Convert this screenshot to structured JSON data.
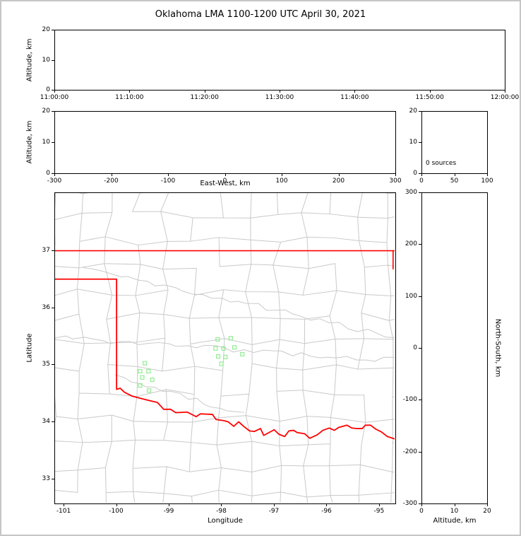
{
  "title": "Oklahoma LMA 1100-1200 UTC April 30, 2021",
  "colors": {
    "state_border": "#ff0000",
    "county_lines": "#c9c9c9",
    "source_marker": "#90ee90",
    "axis_frame": "#000000",
    "page_border": "#c6c6c6",
    "background": "#ffffff"
  },
  "panels": {
    "time_height": {
      "ylabel": "Altitude, km",
      "ytick_labels": [
        "0",
        "10",
        "20"
      ],
      "xtick_labels": [
        "11:00:00",
        "11:10:00",
        "11:20:00",
        "11:30:00",
        "11:40:00",
        "11:50:00",
        "12:00:00"
      ],
      "ylim": [
        0,
        20
      ]
    },
    "ew_height": {
      "xlabel": "East-West, km",
      "ylabel": "Altitude, km",
      "xtick_labels": [
        "-300",
        "-200",
        "-100",
        "0",
        "100",
        "200",
        "300"
      ],
      "ytick_labels": [
        "0",
        "10",
        "20"
      ],
      "xlim": [
        -300,
        300
      ],
      "ylim": [
        0,
        20
      ]
    },
    "alt_histogram": {
      "annotation": "0 sources",
      "xtick_labels": [
        "0",
        "50",
        "100"
      ],
      "ytick_labels": [
        "0",
        "10",
        "20"
      ],
      "xlim": [
        0,
        100
      ],
      "ylim": [
        0,
        20
      ]
    },
    "map": {
      "xlabel": "Longitude",
      "ylabel": "Latitude",
      "xtick_labels": [
        "-101",
        "-100",
        "-99",
        "-98",
        "-97",
        "-96",
        "-95"
      ],
      "ytick_labels": [
        "33",
        "34",
        "35",
        "36",
        "37"
      ],
      "xlim": [
        -101.175,
        -94.69
      ],
      "ylim": [
        32.565,
        38.015
      ]
    },
    "ns_height": {
      "xlabel": "Altitude, km",
      "ylabel": "North-South, km",
      "xtick_labels": [
        "0",
        "10",
        "20"
      ],
      "ytick_labels": [
        "-300",
        "-200",
        "-100",
        "0",
        "100",
        "200",
        "300"
      ],
      "xlim": [
        0,
        20
      ],
      "ylim": [
        -300,
        300
      ]
    }
  },
  "chart_data": {
    "type": "scatter",
    "title": "Oklahoma LMA 1100-1200 UTC April 30, 2021",
    "panels": {
      "time_height": {
        "x_range": [
          "11:00:00",
          "12:00:00"
        ],
        "y_range_km": [
          0,
          20
        ],
        "points": []
      },
      "ew_height": {
        "x_range_km": [
          -300,
          300
        ],
        "y_range_km": [
          0,
          20
        ],
        "points": []
      },
      "altitude_histogram": {
        "x_range": [
          0,
          100
        ],
        "y_range_km": [
          0,
          20
        ],
        "annotation": "0 sources",
        "points": []
      },
      "ns_height": {
        "x_range_km": [
          0,
          20
        ],
        "y_range_km": [
          -300,
          300
        ],
        "points": []
      },
      "map": {
        "x_range_lon": [
          -101.175,
          -94.69
        ],
        "y_range_lat": [
          32.565,
          38.015
        ],
        "sources_lonlat": [
          [
            -99.46,
            35.02
          ],
          [
            -99.55,
            34.88
          ],
          [
            -99.39,
            34.88
          ],
          [
            -99.51,
            34.77
          ],
          [
            -99.32,
            34.73
          ],
          [
            -99.55,
            34.63
          ],
          [
            -99.38,
            34.54
          ],
          [
            -98.07,
            35.44
          ],
          [
            -97.82,
            35.46
          ],
          [
            -98.11,
            35.28
          ],
          [
            -97.96,
            35.28
          ],
          [
            -97.75,
            35.3
          ],
          [
            -98.06,
            35.14
          ],
          [
            -97.92,
            35.13
          ],
          [
            -97.6,
            35.18
          ],
          [
            -98.0,
            35.01
          ]
        ],
        "oklahoma_border_lonlat": {
          "north_line": [
            [
              -101.175,
              37.0
            ],
            [
              -94.69,
              37.0
            ]
          ],
          "northeast_segment": [
            [
              -94.72,
              37.0
            ],
            [
              -94.72,
              36.68
            ]
          ],
          "west_line_and_red_river": [
            [
              -101.175,
              36.5
            ],
            [
              -100.0,
              36.5
            ],
            [
              -100.0,
              34.56
            ],
            [
              -99.93,
              34.58
            ],
            [
              -99.85,
              34.51
            ],
            [
              -99.7,
              34.44
            ],
            [
              -99.58,
              34.41
            ],
            [
              -99.4,
              34.37
            ],
            [
              -99.22,
              34.33
            ],
            [
              -99.1,
              34.21
            ],
            [
              -98.97,
              34.21
            ],
            [
              -98.87,
              34.15
            ],
            [
              -98.65,
              34.16
            ],
            [
              -98.48,
              34.08
            ],
            [
              -98.4,
              34.13
            ],
            [
              -98.17,
              34.12
            ],
            [
              -98.1,
              34.03
            ],
            [
              -97.95,
              34.01
            ],
            [
              -97.87,
              33.99
            ],
            [
              -97.76,
              33.91
            ],
            [
              -97.67,
              33.99
            ],
            [
              -97.56,
              33.9
            ],
            [
              -97.46,
              33.83
            ],
            [
              -97.37,
              33.82
            ],
            [
              -97.25,
              33.87
            ],
            [
              -97.19,
              33.75
            ],
            [
              -97.09,
              33.8
            ],
            [
              -96.99,
              33.85
            ],
            [
              -96.9,
              33.77
            ],
            [
              -96.79,
              33.73
            ],
            [
              -96.71,
              33.83
            ],
            [
              -96.62,
              33.84
            ],
            [
              -96.55,
              33.8
            ],
            [
              -96.41,
              33.78
            ],
            [
              -96.31,
              33.7
            ],
            [
              -96.17,
              33.76
            ],
            [
              -96.06,
              33.84
            ],
            [
              -95.94,
              33.88
            ],
            [
              -95.84,
              33.84
            ],
            [
              -95.76,
              33.89
            ],
            [
              -95.6,
              33.93
            ],
            [
              -95.51,
              33.88
            ],
            [
              -95.41,
              33.87
            ],
            [
              -95.31,
              33.87
            ],
            [
              -95.25,
              33.93
            ],
            [
              -95.15,
              33.93
            ],
            [
              -95.05,
              33.86
            ],
            [
              -94.94,
              33.81
            ],
            [
              -94.83,
              33.73
            ],
            [
              -94.69,
              33.69
            ]
          ]
        }
      }
    }
  }
}
